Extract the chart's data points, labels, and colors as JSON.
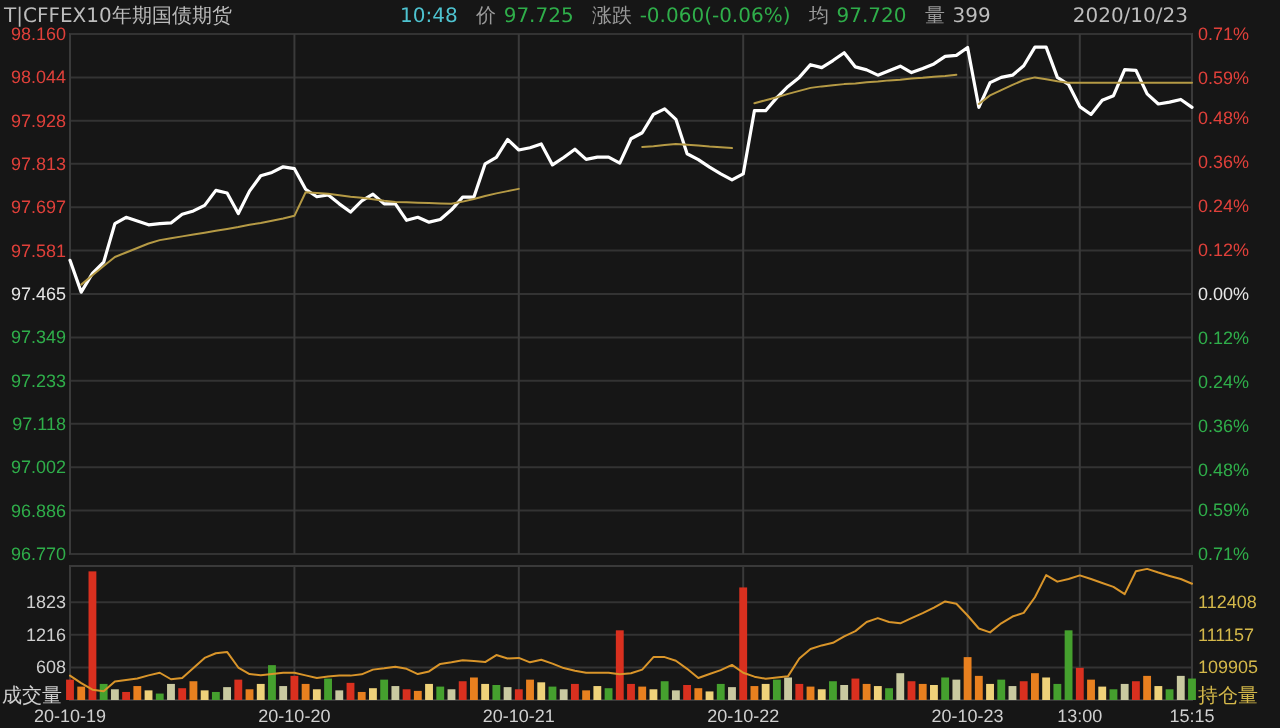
{
  "chart_data": [
    {
      "type": "line",
      "title": "T|CFFEX10年期国债期货",
      "annotations": [
        "10:48",
        "价",
        "97.725",
        "涨跌",
        "-0.060(-0.06%)",
        "均",
        "97.720",
        "量",
        "399",
        "2020/10/23"
      ],
      "categories": [
        null,
        null,
        null,
        null,
        null,
        null,
        null,
        null,
        null,
        null,
        null,
        null,
        null,
        null,
        null,
        null,
        null,
        null,
        null,
        null,
        null,
        null,
        null,
        null,
        null,
        null,
        null,
        null,
        null,
        null,
        null,
        null,
        null,
        null,
        null,
        null,
        null,
        null,
        null,
        null,
        null,
        null,
        null,
        null,
        null,
        null,
        null,
        null,
        null,
        null,
        null,
        null,
        null,
        null,
        null,
        null,
        null,
        null,
        null,
        null,
        null,
        null,
        null,
        null,
        null,
        null,
        null,
        null,
        null,
        null,
        null,
        null,
        null,
        null,
        null,
        null,
        null,
        null,
        null,
        null,
        null,
        null,
        null,
        null,
        null,
        null,
        null,
        null,
        null,
        null,
        null,
        null,
        null,
        null,
        null,
        null,
        null,
        null,
        null,
        null,
        null
      ],
      "ylim": [
        96.77,
        98.16
      ],
      "yticks": [
        {
          "value": 96.77,
          "label": "96.770"
        },
        96.886,
        97.002,
        97.118,
        97.233,
        97.349,
        97.465,
        97.581,
        97.697,
        97.813,
        97.928,
        98.044,
        {
          "value": 98.16,
          "label": "98.160"
        }
      ],
      "y2lim": [
        -0.71,
        0.71
      ],
      "y2ticks": [
        {
          "value": -0.71,
          "label": "0.71%"
        },
        {
          "value": -0.59,
          "label": "0.59%"
        },
        {
          "value": -0.48,
          "label": "0.48%"
        },
        {
          "value": -0.36,
          "label": "0.36%"
        },
        {
          "value": -0.24,
          "label": "0.24%"
        },
        {
          "value": -0.12,
          "label": "0.12%"
        },
        {
          "value": 0,
          "label": "0.00%"
        },
        {
          "value": 0.12,
          "label": "0.12%"
        },
        {
          "value": 0.24,
          "label": "0.24%"
        },
        {
          "value": 0.36,
          "label": "0.36%"
        },
        {
          "value": 0.48,
          "label": "0.48%"
        },
        {
          "value": 0.59,
          "label": "0.59%"
        },
        {
          "value": 0.71,
          "label": "0.71%"
        }
      ],
      "tick_labels": "y",
      "grid": true,
      "series": [
        {
          "color": "#ffffff",
          "values": [
            97.555,
            97.47,
            97.52,
            97.55,
            97.653,
            97.67,
            97.66,
            97.65,
            97.653,
            97.655,
            97.678,
            97.687,
            97.702,
            97.742,
            97.735,
            97.68,
            97.74,
            97.781,
            97.79,
            97.805,
            97.8,
            97.745,
            97.725,
            97.73,
            97.706,
            97.684,
            97.714,
            97.732,
            97.706,
            97.706,
            97.662,
            97.67,
            97.657,
            97.664,
            97.69,
            97.724,
            97.724,
            97.813,
            97.83,
            97.878,
            97.85,
            97.856,
            97.866,
            97.81,
            97.83,
            97.852,
            97.825,
            97.831,
            97.831,
            97.815,
            97.88,
            97.896,
            97.945,
            97.96,
            97.932,
            97.84,
            97.824,
            97.804,
            97.786,
            97.77,
            97.786,
            97.955,
            97.955,
            97.99,
            98.02,
            98.044,
            98.078,
            98.07,
            98.089,
            98.11,
            98.072,
            98.064,
            98.05,
            98.062,
            98.074,
            98.057,
            98.068,
            98.08,
            98.1,
            98.103,
            98.124,
            97.964,
            98.03,
            98.044,
            98.05,
            98.075,
            98.125,
            98.125,
            98.044,
            98.025,
            97.966,
            97.945,
            97.983,
            97.995,
            98.065,
            98.063,
            98.0,
            97.973,
            97.978,
            97.985,
            97.964
          ]
        },
        {
          "color": "#b59a45",
          "values": [
            null,
            97.49,
            97.515,
            97.54,
            97.564,
            97.576,
            97.588,
            97.6,
            97.609,
            97.614,
            97.619,
            97.624,
            97.629,
            97.634,
            97.639,
            97.644,
            97.65,
            97.655,
            97.661,
            97.667,
            97.674,
            97.737,
            97.735,
            97.733,
            97.729,
            97.725,
            97.722,
            97.718,
            97.714,
            97.711,
            97.71,
            97.709,
            97.708,
            97.707,
            97.706,
            97.712,
            97.719,
            97.727,
            97.734,
            97.74,
            97.746,
            null,
            null,
            null,
            null,
            null,
            null,
            null,
            null,
            null,
            null,
            97.858,
            97.86,
            97.863,
            97.866,
            97.864,
            97.862,
            97.859,
            97.857,
            97.855,
            null,
            97.975,
            97.983,
            97.991,
            98.0,
            98.008,
            98.016,
            98.02,
            98.023,
            98.026,
            98.028,
            98.031,
            98.033,
            98.036,
            98.038,
            98.041,
            98.043,
            98.046,
            98.048,
            98.051,
            null,
            97.973,
            97.996,
            98.01,
            98.024,
            98.037,
            98.044,
            98.039,
            98.034,
            98.03,
            98.03,
            98.03,
            98.03,
            98.03,
            98.03,
            98.03,
            98.03,
            98.03,
            98.03,
            98.03,
            98.03
          ]
        }
      ]
    },
    {
      "type": "bar",
      "ylabel": "成交量",
      "y2label": "持仓量",
      "categories": [
        "20-10-19",
        null,
        null,
        null,
        null,
        null,
        null,
        null,
        null,
        null,
        null,
        null,
        null,
        null,
        null,
        null,
        null,
        null,
        null,
        null,
        "20-10-20",
        null,
        null,
        null,
        null,
        null,
        null,
        null,
        null,
        null,
        null,
        null,
        null,
        null,
        null,
        null,
        null,
        null,
        null,
        null,
        "20-10-21",
        null,
        null,
        null,
        null,
        null,
        null,
        null,
        null,
        null,
        null,
        null,
        null,
        null,
        null,
        null,
        null,
        null,
        null,
        null,
        "20-10-22",
        null,
        null,
        null,
        null,
        null,
        null,
        null,
        null,
        null,
        null,
        null,
        null,
        null,
        null,
        null,
        null,
        null,
        null,
        null,
        "20-10-23",
        null,
        null,
        null,
        null,
        null,
        null,
        null,
        null,
        null,
        "13:00",
        null,
        null,
        null,
        null,
        null,
        null,
        null,
        null,
        null,
        "15:15"
      ],
      "ylim": [
        0,
        2500
      ],
      "yticks": [
        608,
        1216,
        1823
      ],
      "y2lim": [
        108653,
        113801
      ],
      "y2ticks": [
        109905,
        111157,
        112408
      ],
      "grid": true,
      "series": [
        {
          "values": [
            380,
            250,
            2400,
            300,
            200,
            150,
            260,
            180,
            120,
            300,
            220,
            350,
            180,
            150,
            240,
            380,
            200,
            300,
            650,
            260,
            450,
            300,
            200,
            400,
            180,
            320,
            150,
            220,
            380,
            260,
            200,
            170,
            300,
            250,
            200,
            350,
            420,
            300,
            280,
            240,
            200,
            380,
            330,
            250,
            200,
            300,
            180,
            260,
            220,
            1300,
            300,
            250,
            200,
            350,
            180,
            280,
            220,
            160,
            300,
            240,
            2100,
            260,
            300,
            380,
            420,
            300,
            250,
            200,
            350,
            280,
            400,
            300,
            260,
            220,
            500,
            350,
            300,
            280,
            420,
            380,
            800,
            450,
            300,
            380,
            260,
            350,
            500,
            420,
            300,
            1300,
            600,
            380,
            250,
            200,
            300,
            350,
            450,
            260,
            200,
            450,
            400
          ],
          "colors": [
            "#d9301f",
            "#e8801f",
            "#d9301f",
            "#45a02e",
            "#c9c9a0",
            "#d9301f",
            "#e8801f",
            "#efd27a",
            "#45a02e",
            "#c9c9a0",
            "#d9301f",
            "#e8801f",
            "#efd27a",
            "#45a02e",
            "#c9c9a0",
            "#d9301f",
            "#e8801f",
            "#efd27a",
            "#45a02e",
            "#c9c9a0",
            "#d9301f",
            "#e8801f",
            "#efd27a",
            "#45a02e",
            "#c9c9a0",
            "#d9301f",
            "#e8801f",
            "#efd27a",
            "#45a02e",
            "#c9c9a0",
            "#d9301f",
            "#e8801f",
            "#efd27a",
            "#45a02e",
            "#c9c9a0",
            "#d9301f",
            "#e8801f",
            "#efd27a",
            "#45a02e",
            "#c9c9a0",
            "#d9301f",
            "#e8801f",
            "#efd27a",
            "#45a02e",
            "#c9c9a0",
            "#d9301f",
            "#e8801f",
            "#efd27a",
            "#45a02e",
            "#d9301f",
            "#d9301f",
            "#e8801f",
            "#efd27a",
            "#45a02e",
            "#c9c9a0",
            "#d9301f",
            "#e8801f",
            "#efd27a",
            "#45a02e",
            "#c9c9a0",
            "#d9301f",
            "#e8801f",
            "#efd27a",
            "#45a02e",
            "#c9c9a0",
            "#d9301f",
            "#e8801f",
            "#efd27a",
            "#45a02e",
            "#c9c9a0",
            "#d9301f",
            "#e8801f",
            "#efd27a",
            "#45a02e",
            "#c9c9a0",
            "#d9301f",
            "#e8801f",
            "#efd27a",
            "#45a02e",
            "#c9c9a0",
            "#e8801f",
            "#e8801f",
            "#efd27a",
            "#45a02e",
            "#c9c9a0",
            "#d9301f",
            "#e8801f",
            "#efd27a",
            "#45a02e",
            "#45a02e",
            "#d9301f",
            "#e8801f",
            "#efd27a",
            "#45a02e",
            "#c9c9a0",
            "#d9301f",
            "#e8801f",
            "#efd27a",
            "#45a02e",
            "#c9c9a0",
            "#45a02e"
          ]
        },
        {
          "type": "line",
          "axis": "y2",
          "color": "#d9952a",
          "values": [
            109590,
            109300,
            109050,
            108990,
            109360,
            109420,
            109480,
            109600,
            109700,
            109450,
            109500,
            109880,
            110270,
            110450,
            110500,
            109900,
            109650,
            109600,
            109650,
            109700,
            109700,
            109600,
            109500,
            109560,
            109590,
            109590,
            109640,
            109820,
            109870,
            109930,
            109850,
            109650,
            109750,
            110040,
            110100,
            110180,
            110150,
            110110,
            110380,
            110250,
            110270,
            110100,
            110200,
            110050,
            109880,
            109780,
            109700,
            109700,
            109700,
            109640,
            109680,
            109820,
            110300,
            110300,
            110160,
            109850,
            109500,
            109650,
            109800,
            110000,
            109700,
            109550,
            109470,
            109520,
            109570,
            110250,
            110610,
            110750,
            110850,
            111100,
            111300,
            111650,
            111800,
            111650,
            111600,
            111800,
            111990,
            112200,
            112440,
            112350,
            111900,
            111400,
            111250,
            111600,
            111860,
            112000,
            112600,
            113450,
            113200,
            113300,
            113440,
            113300,
            113150,
            113000,
            112720,
            113600,
            113690,
            113550,
            113420,
            113300,
            113120
          ]
        }
      ]
    }
  ]
}
